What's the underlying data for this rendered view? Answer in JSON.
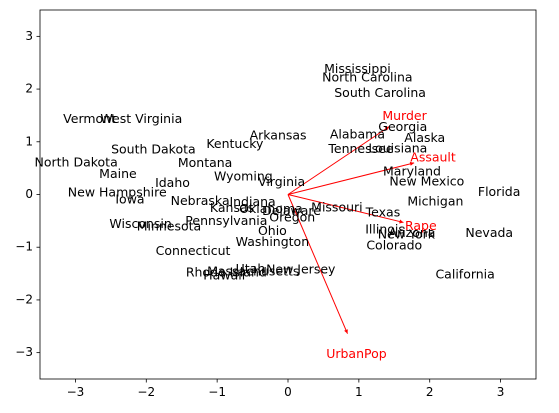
{
  "chart_data": {
    "type": "scatter",
    "subtype": "pca-biplot",
    "title": "",
    "xlabel": "",
    "ylabel": "",
    "xlim": [
      -3.5,
      3.5
    ],
    "ylim": [
      -3.5,
      3.5
    ],
    "xticks": [
      -3,
      -2,
      -1,
      0,
      1,
      2,
      3
    ],
    "yticks": [
      -3,
      -2,
      -1,
      0,
      1,
      2,
      3
    ],
    "grid": false,
    "legend": "none",
    "points": [
      {
        "label": "Alabama",
        "x": 0.98,
        "y": 1.13
      },
      {
        "label": "Alaska",
        "x": 1.93,
        "y": 1.06
      },
      {
        "label": "Arizona",
        "x": 1.75,
        "y": -0.74
      },
      {
        "label": "Arkansas",
        "x": -0.14,
        "y": 1.11
      },
      {
        "label": "California",
        "x": 2.5,
        "y": -1.53
      },
      {
        "label": "Colorado",
        "x": 1.5,
        "y": -0.98
      },
      {
        "label": "Connecticut",
        "x": -1.34,
        "y": -1.08
      },
      {
        "label": "Delaware",
        "x": 0.05,
        "y": -0.32
      },
      {
        "label": "Florida",
        "x": 2.98,
        "y": 0.04
      },
      {
        "label": "Georgia",
        "x": 1.62,
        "y": 1.27
      },
      {
        "label": "Hawaii",
        "x": -0.9,
        "y": -1.55
      },
      {
        "label": "Idaho",
        "x": -1.63,
        "y": 0.21
      },
      {
        "label": "Illinois",
        "x": 1.37,
        "y": -0.67
      },
      {
        "label": "Indiana",
        "x": -0.5,
        "y": -0.15
      },
      {
        "label": "Iowa",
        "x": -2.23,
        "y": -0.1
      },
      {
        "label": "Kansas",
        "x": -0.79,
        "y": -0.27
      },
      {
        "label": "Kentucky",
        "x": -0.75,
        "y": 0.95
      },
      {
        "label": "Louisiana",
        "x": 1.55,
        "y": 0.86
      },
      {
        "label": "Maine",
        "x": -2.4,
        "y": 0.38
      },
      {
        "label": "Maryland",
        "x": 1.75,
        "y": 0.43
      },
      {
        "label": "Massachusetts",
        "x": -0.49,
        "y": -1.47
      },
      {
        "label": "Michigan",
        "x": 2.08,
        "y": -0.14
      },
      {
        "label": "Minnesota",
        "x": -1.68,
        "y": -0.62
      },
      {
        "label": "Mississippi",
        "x": 0.98,
        "y": 2.37
      },
      {
        "label": "Missouri",
        "x": 0.69,
        "y": -0.26
      },
      {
        "label": "Montana",
        "x": -1.17,
        "y": 0.59
      },
      {
        "label": "Nebraska",
        "x": -1.24,
        "y": -0.13
      },
      {
        "label": "Nevada",
        "x": 2.84,
        "y": -0.74
      },
      {
        "label": "New Hampshire",
        "x": -2.41,
        "y": 0.03
      },
      {
        "label": "New Jersey",
        "x": 0.18,
        "y": -1.43
      },
      {
        "label": "New Mexico",
        "x": 1.96,
        "y": 0.24
      },
      {
        "label": "New York",
        "x": 1.67,
        "y": -0.77
      },
      {
        "label": "North Carolina",
        "x": 1.12,
        "y": 2.21
      },
      {
        "label": "North Dakota",
        "x": -2.99,
        "y": 0.6
      },
      {
        "label": "Ohio",
        "x": -0.22,
        "y": -0.7
      },
      {
        "label": "Oklahoma",
        "x": -0.24,
        "y": -0.28
      },
      {
        "label": "Oregon",
        "x": 0.06,
        "y": -0.45
      },
      {
        "label": "Pennsylvania",
        "x": -0.87,
        "y": -0.51
      },
      {
        "label": "Rhode Island",
        "x": -0.87,
        "y": -1.49
      },
      {
        "label": "South Carolina",
        "x": 1.3,
        "y": 1.92
      },
      {
        "label": "South Dakota",
        "x": -1.9,
        "y": 0.84
      },
      {
        "label": "Tennessee",
        "x": 1.03,
        "y": 0.85
      },
      {
        "label": "Texas",
        "x": 1.34,
        "y": -0.35
      },
      {
        "label": "Utah",
        "x": -0.53,
        "y": -1.42
      },
      {
        "label": "Vermont",
        "x": -2.8,
        "y": 1.42
      },
      {
        "label": "Virginia",
        "x": -0.09,
        "y": 0.23
      },
      {
        "label": "Washington",
        "x": -0.22,
        "y": -0.91
      },
      {
        "label": "West Virginia",
        "x": -2.07,
        "y": 1.42
      },
      {
        "label": "Wisconsin",
        "x": -2.08,
        "y": -0.57
      },
      {
        "label": "Wyoming",
        "x": -0.63,
        "y": 0.33
      }
    ],
    "loadings": [
      {
        "label": "Murder",
        "x": 1.43,
        "y": 1.29
      },
      {
        "label": "Assault",
        "x": 1.78,
        "y": 0.6
      },
      {
        "label": "UrbanPop",
        "x": 0.84,
        "y": -2.64
      },
      {
        "label": "Rape",
        "x": 1.63,
        "y": -0.53
      }
    ],
    "loading_label_scale": 1.15,
    "colors": {
      "points_text": "#000000",
      "loadings": "#ff0000"
    }
  }
}
